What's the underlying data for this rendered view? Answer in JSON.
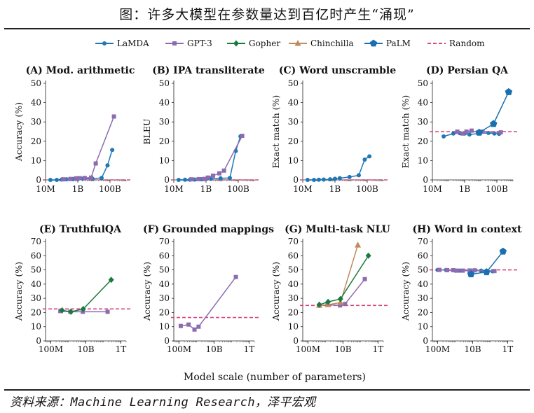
{
  "header": {
    "title": "图：许多大模型在参数量达到百亿时产生“涌现”"
  },
  "source": "资料来源：Machine Learning Research，泽平宏观",
  "chart_data": {
    "type": "line",
    "xlabel": "Model scale (number of parameters)",
    "legend": {
      "placement": "top",
      "entries": [
        {
          "name": "LaMDA",
          "color": "#1f77b4",
          "marker": "circle"
        },
        {
          "name": "GPT-3",
          "color": "#8c6bb1",
          "marker": "square"
        },
        {
          "name": "Gopher",
          "color": "#1b7a3e",
          "marker": "diamond"
        },
        {
          "name": "Chinchilla",
          "color": "#c08a5c",
          "marker": "triangle"
        },
        {
          "name": "PaLM",
          "color": "#1a6fb0",
          "marker": "pentagon"
        },
        {
          "name": "Random",
          "color": "#d6457f",
          "marker": "dashed"
        }
      ]
    },
    "panels": [
      {
        "title": "(A) Mod. arithmetic",
        "ylabel": "Accuracy (%)",
        "xlim": [
          10000000.0,
          1000000000000.0
        ],
        "xticks": [
          10000000.0,
          1000000000.0,
          100000000000.0
        ],
        "xtick_labels": [
          "10M",
          "1B",
          "100B"
        ],
        "ylim": [
          0,
          50
        ],
        "yticks": [
          0,
          10,
          20,
          30,
          40,
          50
        ],
        "random": 0,
        "series": [
          {
            "name": "LaMDA",
            "x": [
              20000000.0,
              50000000.0,
              100000000.0,
              200000000.0,
              500000000.0,
              1000000000.0,
              2000000000.0,
              8000000000.0,
              30000000000.0,
              70000000000.0,
              137000000000.0
            ],
            "y": [
              0,
              0,
              0.2,
              0.3,
              0.4,
              0.5,
              0.6,
              0.7,
              1,
              7.5,
              15.5
            ]
          },
          {
            "name": "GPT-3",
            "x": [
              125000000.0,
              350000000.0,
              760000000.0,
              1300000000.0,
              2700000000.0,
              6700000000.0,
              13000000000.0,
              175000000000.0
            ],
            "y": [
              0.3,
              0.5,
              0.8,
              0.9,
              1.0,
              1.2,
              8.5,
              32.8
            ]
          }
        ]
      },
      {
        "title": "(B) IPA transliterate",
        "ylabel": "BLEU",
        "xlim": [
          10000000.0,
          1000000000000.0
        ],
        "xticks": [
          10000000.0,
          1000000000.0,
          100000000000.0
        ],
        "xtick_labels": [
          "10M",
          "1B",
          "100B"
        ],
        "ylim": [
          0,
          50
        ],
        "yticks": [
          0,
          10,
          20,
          30,
          40,
          50
        ],
        "random": 0,
        "series": [
          {
            "name": "LaMDA",
            "x": [
              20000000.0,
              50000000.0,
              100000000.0,
              200000000.0,
              500000000.0,
              1000000000.0,
              2000000000.0,
              8000000000.0,
              30000000000.0,
              70000000000.0,
              137000000000.0
            ],
            "y": [
              0,
              0.1,
              0.1,
              0.2,
              0.3,
              0.5,
              0.6,
              0.8,
              1,
              15,
              22.5
            ]
          },
          {
            "name": "GPT-3",
            "x": [
              125000000.0,
              350000000.0,
              760000000.0,
              1300000000.0,
              2700000000.0,
              6700000000.0,
              13000000000.0,
              175000000000.0
            ],
            "y": [
              0.3,
              0.4,
              0.5,
              1.2,
              2.2,
              3.4,
              4.8,
              22.8
            ]
          }
        ]
      },
      {
        "title": "(C) Word unscramble",
        "ylabel": "Exact match (%)",
        "xlim": [
          10000000.0,
          1000000000000.0
        ],
        "xticks": [
          10000000.0,
          1000000000.0,
          100000000000.0
        ],
        "xtick_labels": [
          "10M",
          "1B",
          "100B"
        ],
        "ylim": [
          0,
          50
        ],
        "yticks": [
          0,
          10,
          20,
          30,
          40,
          50
        ],
        "random": 0,
        "series": [
          {
            "name": "LaMDA",
            "x": [
              20000000.0,
              50000000.0,
              100000000.0,
              200000000.0,
              500000000.0,
              1000000000.0,
              2000000000.0,
              8000000000.0,
              30000000000.0,
              70000000000.0,
              137000000000.0
            ],
            "y": [
              0,
              0,
              0.1,
              0.2,
              0.3,
              0.6,
              0.9,
              1.5,
              2.4,
              10.5,
              12.2
            ]
          }
        ]
      },
      {
        "title": "(D) Persian QA",
        "ylabel": "Exact match (%)",
        "xlim": [
          10000000.0,
          1000000000000.0
        ],
        "xticks": [
          10000000.0,
          1000000000.0,
          100000000000.0
        ],
        "xtick_labels": [
          "10M",
          "1B",
          "100B"
        ],
        "ylim": [
          0,
          50
        ],
        "yticks": [
          0,
          10,
          20,
          30,
          40,
          50
        ],
        "random": 25,
        "series": [
          {
            "name": "LaMDA",
            "x": [
              50000000.0,
              200000000.0,
              500000000.0,
              1000000000.0,
              2000000000.0,
              8000000000.0,
              30000000000.0,
              70000000000.0,
              137000000000.0
            ],
            "y": [
              22.5,
              24,
              24.2,
              24,
              23.5,
              24,
              24.3,
              24,
              23.8
            ]
          },
          {
            "name": "GPT-3",
            "x": [
              350000000.0,
              760000000.0,
              1300000000.0,
              2700000000.0,
              6700000000.0,
              13000000000.0,
              175000000000.0
            ],
            "y": [
              25,
              24,
              25,
              25.5,
              24.5,
              25,
              24.6
            ]
          },
          {
            "name": "PaLM",
            "x": [
              8000000000.0,
              62000000000.0,
              540000000000.0
            ],
            "y": [
              24.5,
              29,
              45.5
            ]
          }
        ]
      },
      {
        "title": "(E) TruthfulQA",
        "ylabel": "Accuracy (%)",
        "xlim": [
          50000000.0,
          2000000000000.0
        ],
        "xticks": [
          100000000.0,
          10000000000.0,
          1000000000000.0
        ],
        "xtick_labels": [
          "100M",
          "10B",
          "1T"
        ],
        "ylim": [
          0,
          70
        ],
        "yticks": [
          0,
          10,
          20,
          30,
          40,
          50,
          60,
          70
        ],
        "random": 22.5,
        "series": [
          {
            "name": "GPT-3",
            "x": [
              350000000.0,
              1300000000.0,
              6700000000.0,
              175000000000.0
            ],
            "y": [
              21,
              20.5,
              20.5,
              20.5
            ]
          },
          {
            "name": "Gopher",
            "x": [
              440000000.0,
              1400000000.0,
              7100000000.0,
              280000000000.0
            ],
            "y": [
              21.5,
              20.5,
              22.5,
              43
            ]
          }
        ]
      },
      {
        "title": "(F) Grounded mappings",
        "ylabel": "Accuracy (%)",
        "xlim": [
          50000000.0,
          2000000000000.0
        ],
        "xticks": [
          100000000.0,
          10000000000.0,
          1000000000000.0
        ],
        "xtick_labels": [
          "100M",
          "10B",
          "1T"
        ],
        "ylim": [
          0,
          70
        ],
        "yticks": [
          0,
          10,
          20,
          30,
          40,
          50,
          60,
          70
        ],
        "random": 16.5,
        "series": [
          {
            "name": "GPT-3",
            "x": [
              125000000.0,
              350000000.0,
              760000000.0,
              1300000000.0,
              175000000000.0
            ],
            "y": [
              10.5,
              11.5,
              8,
              10,
              45
            ]
          }
        ]
      },
      {
        "title": "(G) Multi-task NLU",
        "ylabel": "Accuracy (%)",
        "xlim": [
          50000000.0,
          2000000000000.0
        ],
        "xticks": [
          100000000.0,
          10000000000.0,
          1000000000000.0
        ],
        "xtick_labels": [
          "100M",
          "10B",
          "1T"
        ],
        "ylim": [
          0,
          70
        ],
        "yticks": [
          0,
          10,
          20,
          30,
          40,
          50,
          60,
          70
        ],
        "random": 25,
        "series": [
          {
            "name": "GPT-3",
            "x": [
              1300000000.0,
              6700000000.0,
              13000000000.0,
              175000000000.0
            ],
            "y": [
              25.5,
              25,
              26,
              43.5
            ]
          },
          {
            "name": "Chinchilla",
            "x": [
              440000000.0,
              1400000000.0,
              7100000000.0,
              70000000000.0
            ],
            "y": [
              25,
              25.5,
              27,
              67.5
            ]
          },
          {
            "name": "Gopher",
            "x": [
              440000000.0,
              1400000000.0,
              7100000000.0,
              280000000000.0
            ],
            "y": [
              25.5,
              27.5,
              29.5,
              60
            ]
          }
        ]
      },
      {
        "title": "(H) Word in context",
        "ylabel": "Accuracy (%)",
        "xlim": [
          50000000.0,
          2000000000000.0
        ],
        "xticks": [
          100000000.0,
          10000000000.0,
          1000000000000.0
        ],
        "xtick_labels": [
          "100M",
          "10B",
          "1T"
        ],
        "ylim": [
          0,
          70
        ],
        "yticks": [
          0,
          10,
          20,
          30,
          40,
          50,
          60,
          70
        ],
        "random": 50,
        "series": [
          {
            "name": "LaMDA",
            "x": [
              100000000.0,
              300000000.0,
              1000000000.0,
              2000000000.0,
              8000000000.0,
              30000000000.0,
              137000000000.0
            ],
            "y": [
              50,
              50,
              49.5,
              49.5,
              49.5,
              49.5,
              49
            ]
          },
          {
            "name": "GPT-3",
            "x": [
              125000000.0,
              350000000.0,
              760000000.0,
              1300000000.0,
              2700000000.0,
              6700000000.0,
              13000000000.0,
              175000000000.0
            ],
            "y": [
              50,
              49.8,
              49.8,
              49.5,
              49.5,
              49.6,
              49.7,
              49.2
            ]
          },
          {
            "name": "PaLM",
            "x": [
              8000000000.0,
              62000000000.0,
              540000000000.0
            ],
            "y": [
              47,
              48.5,
              63
            ]
          }
        ]
      }
    ]
  }
}
